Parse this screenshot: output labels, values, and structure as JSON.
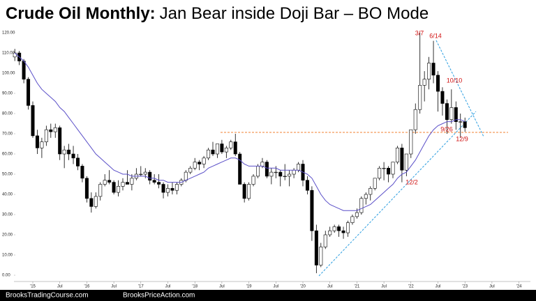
{
  "chart_data": {
    "type": "candlestick",
    "title": {
      "lead": "Crude Oil Monthly:",
      "rest": "Jan Bear inside Doji Bar – BO Mode"
    },
    "footer": [
      "BrooksTradingCourse.com",
      "BrooksPriceAction.com"
    ],
    "x": [
      -4,
      -3,
      -2,
      -1,
      0,
      1,
      2,
      3,
      4,
      5,
      6,
      7,
      8,
      9,
      10,
      11,
      12,
      13,
      14,
      15,
      16,
      17,
      18,
      19,
      20,
      21,
      22,
      23,
      24,
      25,
      26,
      27,
      28,
      29,
      30,
      31,
      32,
      33,
      34,
      35,
      36,
      37,
      38,
      39,
      40,
      41,
      42,
      43,
      44,
      45,
      46,
      47,
      48,
      49,
      50,
      51,
      52,
      53,
      54,
      55,
      56,
      57,
      58,
      59,
      60,
      61,
      62,
      63,
      64,
      65,
      66,
      67,
      68,
      69,
      70,
      71,
      72,
      73,
      74,
      75,
      76,
      77,
      78,
      79,
      80,
      81,
      82,
      83,
      84,
      85,
      86,
      87,
      88,
      89,
      90,
      91,
      92,
      93,
      94,
      95,
      96
    ],
    "open": [
      108,
      110,
      106,
      97,
      84,
      69,
      63,
      66,
      72,
      71,
      73,
      60,
      62,
      60,
      58,
      54,
      48,
      38,
      34,
      39,
      45,
      47,
      46,
      41,
      44,
      46,
      45,
      48,
      50,
      50,
      51,
      47,
      46,
      45,
      41,
      43,
      42,
      45,
      47,
      51,
      53,
      56,
      55,
      58,
      62,
      60,
      65,
      61,
      63,
      66,
      60,
      45,
      38,
      45,
      49,
      54,
      56,
      49,
      51,
      51,
      49,
      49,
      50,
      52,
      55,
      47,
      42,
      22,
      5,
      14,
      20,
      22,
      24,
      22,
      21,
      26,
      29,
      31,
      38,
      40,
      43,
      48,
      53,
      53,
      50,
      56,
      63,
      52,
      60,
      72,
      82,
      94,
      97,
      105,
      99,
      91,
      85,
      77,
      83,
      76,
      76
    ],
    "high": [
      112,
      111,
      107,
      98,
      86,
      72,
      68,
      74,
      75,
      75,
      74,
      64,
      65,
      64,
      60,
      55,
      49,
      41,
      41,
      46,
      50,
      52,
      47,
      47,
      48,
      52,
      50,
      53,
      54,
      53,
      52,
      50,
      50,
      46,
      45,
      46,
      46,
      48,
      52,
      54,
      58,
      57,
      59,
      63,
      66,
      65,
      67,
      64,
      67,
      70,
      61,
      46,
      46,
      50,
      55,
      58,
      57,
      53,
      54,
      52,
      55,
      52,
      53,
      56,
      57,
      49,
      44,
      25,
      16,
      22,
      24,
      25,
      25,
      24,
      27,
      30,
      33,
      39,
      41,
      44,
      48,
      54,
      56,
      54,
      56,
      64,
      65,
      60,
      72,
      85,
      120,
      101,
      108,
      116,
      101,
      93,
      87,
      92,
      86,
      80,
      78
    ],
    "low": [
      106,
      104,
      95,
      82,
      68,
      60,
      58,
      64,
      68,
      68,
      57,
      53,
      57,
      55,
      52,
      46,
      36,
      31,
      33,
      37,
      44,
      45,
      40,
      39,
      42,
      45,
      42,
      47,
      49,
      48,
      45,
      45,
      43,
      38,
      39,
      40,
      40,
      44,
      46,
      50,
      52,
      52,
      53,
      57,
      59,
      58,
      60,
      58,
      62,
      59,
      45,
      36,
      37,
      44,
      48,
      53,
      48,
      45,
      48,
      44,
      47,
      44,
      48,
      51,
      44,
      40,
      17,
      1,
      4,
      13,
      19,
      21,
      19,
      18,
      19,
      25,
      28,
      30,
      35,
      37,
      42,
      47,
      47,
      46,
      48,
      55,
      46,
      49,
      58,
      70,
      80,
      86,
      92,
      95,
      81,
      79,
      70,
      75,
      72,
      68,
      71
    ],
    "close": [
      110,
      106,
      97,
      84,
      69,
      63,
      66,
      72,
      71,
      73,
      60,
      62,
      60,
      58,
      54,
      48,
      38,
      34,
      39,
      45,
      47,
      46,
      41,
      44,
      46,
      45,
      48,
      50,
      50,
      51,
      47,
      46,
      45,
      41,
      43,
      42,
      45,
      47,
      51,
      53,
      56,
      55,
      58,
      62,
      60,
      65,
      61,
      63,
      66,
      60,
      45,
      38,
      45,
      49,
      54,
      56,
      49,
      51,
      51,
      49,
      49,
      50,
      52,
      55,
      47,
      42,
      22,
      5,
      14,
      20,
      22,
      24,
      22,
      21,
      26,
      29,
      31,
      38,
      40,
      43,
      48,
      53,
      53,
      50,
      56,
      63,
      52,
      60,
      72,
      82,
      94,
      97,
      105,
      99,
      91,
      85,
      77,
      83,
      76,
      76,
      73
    ],
    "moving_average": {
      "color": "#5a4fc8",
      "values": [
        110,
        108,
        106,
        103,
        99,
        95,
        92,
        90,
        88,
        86,
        83,
        81,
        78,
        75,
        72,
        69,
        66,
        63,
        60,
        58,
        56,
        54,
        52,
        51,
        50,
        50,
        49,
        49,
        49,
        49,
        48,
        48,
        47,
        47,
        46,
        46,
        46,
        46,
        47,
        48,
        49,
        50,
        51,
        53,
        54,
        55,
        56,
        57,
        58,
        58,
        57,
        55,
        54,
        54,
        54,
        54,
        53,
        53,
        53,
        52,
        52,
        52,
        52,
        52,
        51,
        50,
        48,
        44,
        40,
        37,
        35,
        34,
        33,
        32,
        32,
        32,
        32,
        33,
        34,
        35,
        37,
        39,
        41,
        43,
        45,
        48,
        50,
        51,
        54,
        57,
        61,
        65,
        69,
        72,
        74,
        75,
        76,
        76,
        77,
        77,
        76
      ]
    },
    "up_color": "#ffffff",
    "down_color": "#000000",
    "ylim": [
      0,
      120
    ],
    "yticks": [
      {
        "value": 0,
        "label": "0.00"
      },
      {
        "value": 10,
        "label": "10.00"
      },
      {
        "value": 20,
        "label": "20.00"
      },
      {
        "value": 30,
        "label": "30.00"
      },
      {
        "value": 40,
        "label": "40.00"
      },
      {
        "value": 50,
        "label": "50.00"
      },
      {
        "value": 60,
        "label": "60.00"
      },
      {
        "value": 70,
        "label": "70.00"
      },
      {
        "value": 80,
        "label": "80.00"
      },
      {
        "value": 90,
        "label": "90.00"
      },
      {
        "value": 100,
        "label": "100.00"
      },
      {
        "value": 110,
        "label": "110.00"
      },
      {
        "value": 120,
        "label": "120.00"
      }
    ],
    "xticks": [
      {
        "value": 0,
        "label": "'15"
      },
      {
        "value": 6,
        "label": "Jul"
      },
      {
        "value": 12,
        "label": "'16"
      },
      {
        "value": 18,
        "label": "Jul"
      },
      {
        "value": 24,
        "label": "'17"
      },
      {
        "value": 30,
        "label": "Jul"
      },
      {
        "value": 36,
        "label": "'18"
      },
      {
        "value": 42,
        "label": "Jul"
      },
      {
        "value": 48,
        "label": "'19"
      },
      {
        "value": 54,
        "label": "Jul"
      },
      {
        "value": 60,
        "label": "'20"
      },
      {
        "value": 66,
        "label": "Jul"
      },
      {
        "value": 72,
        "label": "'21"
      },
      {
        "value": 78,
        "label": "Jul"
      },
      {
        "value": 84,
        "label": "'22"
      },
      {
        "value": 90,
        "label": "Jul"
      },
      {
        "value": 96,
        "label": "'23"
      },
      {
        "value": 102,
        "label": "Jul"
      },
      {
        "value": 108,
        "label": "'24"
      }
    ],
    "annotations": [
      "3/7",
      "6/14",
      "10/10",
      "9/26",
      "12/9",
      "12/2"
    ]
  }
}
